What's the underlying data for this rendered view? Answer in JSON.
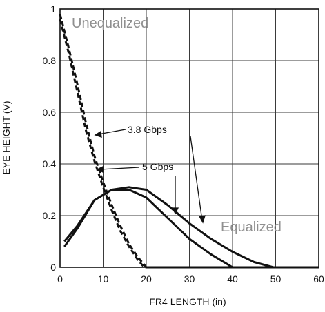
{
  "chart_data": {
    "type": "line",
    "title": "",
    "xlabel": "FR4 LENGTH (in)",
    "ylabel": "EYE HEIGHT (V)",
    "xlim": [
      0,
      60
    ],
    "ylim": [
      0,
      1
    ],
    "x_ticks": [
      0,
      10,
      20,
      30,
      40,
      50,
      60
    ],
    "y_ticks": [
      0,
      0.2,
      0.4,
      0.6,
      0.8,
      1
    ],
    "x_tick_labels": [
      "0",
      "10",
      "20",
      "30",
      "40",
      "50",
      "60"
    ],
    "y_tick_labels": [
      "0",
      "0.2",
      "0.4",
      "0.6",
      "0.8",
      "1"
    ],
    "grid": true,
    "series": [
      {
        "name": "3.8 Gbps",
        "group": "Unequalized",
        "style": "dashed",
        "x": [
          0,
          2,
          4,
          6,
          8,
          10,
          12,
          14,
          16,
          18,
          20,
          30,
          40,
          50,
          60
        ],
        "y": [
          0.98,
          0.85,
          0.71,
          0.56,
          0.43,
          0.33,
          0.24,
          0.16,
          0.09,
          0.04,
          0.0,
          0.0,
          0.0,
          0.0,
          0.0
        ]
      },
      {
        "name": "5 Gbps",
        "group": "Unequalized",
        "style": "dashed",
        "x": [
          0,
          2,
          4,
          6,
          8,
          10,
          12,
          14,
          16,
          18,
          19.5,
          30,
          40,
          50,
          60
        ],
        "y": [
          0.96,
          0.83,
          0.68,
          0.53,
          0.41,
          0.31,
          0.22,
          0.14,
          0.08,
          0.03,
          0.0,
          0.0,
          0.0,
          0.0,
          0.0
        ]
      },
      {
        "name": "3.8 Gbps",
        "group": "Equalized",
        "style": "solid",
        "x": [
          1,
          4,
          8,
          12,
          16,
          20,
          25,
          30,
          35,
          40,
          45,
          49.5
        ],
        "y": [
          0.1,
          0.16,
          0.26,
          0.3,
          0.31,
          0.3,
          0.24,
          0.17,
          0.11,
          0.06,
          0.02,
          0.0
        ]
      },
      {
        "name": "5 Gbps",
        "group": "Equalized",
        "style": "solid",
        "x": [
          1,
          4,
          8,
          12,
          16,
          20,
          25,
          30,
          35,
          40
        ],
        "y": [
          0.08,
          0.15,
          0.26,
          0.3,
          0.3,
          0.27,
          0.19,
          0.11,
          0.05,
          0.0
        ]
      }
    ],
    "annotations": {
      "unequalized": "Unequalized",
      "equalized": "Equalized",
      "rate_high": "3.8 Gbps",
      "rate_low": "5 Gbps"
    }
  },
  "colors": {
    "line": "#111111",
    "grid": "#3a3a3a",
    "region_text": "#8f8f8f"
  }
}
